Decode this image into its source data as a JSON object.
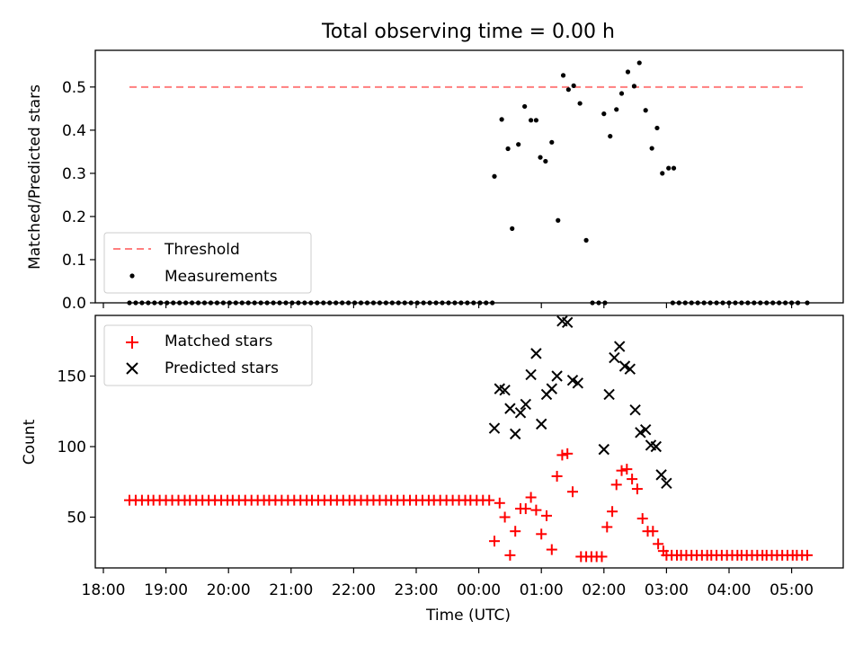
{
  "figure": {
    "title": "Total observing time = 0.00 h"
  },
  "chart_data": [
    {
      "type": "scatter",
      "panel": "top",
      "ylabel": "Matched/Predicted stars",
      "ylim": [
        0,
        0.585
      ],
      "yticks": [
        0.0,
        0.1,
        0.2,
        0.3,
        0.4,
        0.5
      ],
      "ytick_labels": [
        "0.0",
        "0.1",
        "0.2",
        "0.3",
        "0.4",
        "0.5"
      ],
      "grid": false,
      "legend_position": "lower-left",
      "threshold": {
        "name": "Threshold",
        "value": 0.5,
        "x_range": [
          "18:25",
          "05:15"
        ],
        "color": "#ff7f7f",
        "style": "dashed"
      },
      "series": [
        {
          "name": "Measurements",
          "color": "#000000",
          "marker": "dot",
          "points": [
            [
              "00:15",
              0.293
            ],
            [
              "00:22",
              0.425
            ],
            [
              "00:28",
              0.357
            ],
            [
              "00:32",
              0.172
            ],
            [
              "00:38",
              0.367
            ],
            [
              "00:44",
              0.455
            ],
            [
              "00:50",
              0.423
            ],
            [
              "00:55",
              0.423
            ],
            [
              "00:59",
              0.337
            ],
            [
              "01:04",
              0.328
            ],
            [
              "01:10",
              0.372
            ],
            [
              "01:16",
              0.191
            ],
            [
              "01:21",
              0.527
            ],
            [
              "01:26",
              0.494
            ],
            [
              "01:31",
              0.503
            ],
            [
              "01:37",
              0.462
            ],
            [
              "01:43",
              0.145
            ],
            [
              "02:00",
              0.438
            ],
            [
              "02:06",
              0.386
            ],
            [
              "02:12",
              0.448
            ],
            [
              "02:17",
              0.485
            ],
            [
              "02:23",
              0.535
            ],
            [
              "02:29",
              0.502
            ],
            [
              "02:34",
              0.556
            ],
            [
              "02:40",
              0.446
            ],
            [
              "02:46",
              0.358
            ],
            [
              "02:51",
              0.405
            ],
            [
              "02:56",
              0.3
            ],
            [
              "03:02",
              0.312
            ],
            [
              "03:07",
              0.312
            ]
          ],
          "zero_points": [
            "18:25",
            "18:31",
            "18:37",
            "18:43",
            "18:49",
            "18:55",
            "19:01",
            "19:07",
            "19:13",
            "19:19",
            "19:25",
            "19:31",
            "19:37",
            "19:43",
            "19:49",
            "19:55",
            "20:01",
            "20:07",
            "20:13",
            "20:19",
            "20:25",
            "20:31",
            "20:37",
            "20:43",
            "20:49",
            "20:55",
            "21:01",
            "21:07",
            "21:13",
            "21:19",
            "21:25",
            "21:31",
            "21:37",
            "21:43",
            "21:49",
            "21:55",
            "22:01",
            "22:07",
            "22:13",
            "22:19",
            "22:25",
            "22:31",
            "22:37",
            "22:43",
            "22:49",
            "22:55",
            "23:01",
            "23:07",
            "23:13",
            "23:19",
            "23:25",
            "23:31",
            "23:37",
            "23:43",
            "23:49",
            "23:55",
            "00:01",
            "00:07",
            "00:13",
            "01:49",
            "01:55",
            "02:01",
            "03:06",
            "03:12",
            "03:18",
            "03:24",
            "03:30",
            "03:36",
            "03:42",
            "03:48",
            "03:54",
            "04:00",
            "04:06",
            "04:12",
            "04:18",
            "04:24",
            "04:30",
            "04:36",
            "04:42",
            "04:48",
            "04:54",
            "05:00",
            "05:06",
            "05:15"
          ]
        }
      ]
    },
    {
      "type": "scatter",
      "panel": "bottom",
      "xlabel": "Time (UTC)",
      "ylabel": "Count",
      "ylim": [
        14,
        193
      ],
      "yticks": [
        50,
        100,
        150
      ],
      "ytick_labels": [
        "50",
        "100",
        "150"
      ],
      "xlim": [
        "18:00",
        "05:50"
      ],
      "xtick_labels": [
        "18:00",
        "19:00",
        "20:00",
        "21:00",
        "22:00",
        "23:00",
        "00:00",
        "01:00",
        "02:00",
        "03:00",
        "04:00",
        "05:00"
      ],
      "grid": false,
      "legend_position": "upper-left",
      "series": [
        {
          "name": "Matched stars",
          "color": "#ff0000",
          "marker": "plus",
          "points": [
            [
              "00:15",
              33
            ],
            [
              "00:20",
              60
            ],
            [
              "00:25",
              50
            ],
            [
              "00:30",
              23
            ],
            [
              "00:35",
              40
            ],
            [
              "00:40",
              56
            ],
            [
              "00:45",
              56
            ],
            [
              "00:50",
              64
            ],
            [
              "00:55",
              55
            ],
            [
              "01:00",
              38
            ],
            [
              "01:05",
              51
            ],
            [
              "01:10",
              27
            ],
            [
              "01:15",
              79
            ],
            [
              "01:20",
              94
            ],
            [
              "01:25",
              95
            ],
            [
              "01:30",
              68
            ],
            [
              "01:38",
              22
            ],
            [
              "01:43",
              22
            ],
            [
              "01:48",
              22
            ],
            [
              "01:53",
              22
            ],
            [
              "01:58",
              22
            ],
            [
              "02:03",
              43
            ],
            [
              "02:08",
              54
            ],
            [
              "02:12",
              73
            ],
            [
              "02:17",
              83
            ],
            [
              "02:22",
              84
            ],
            [
              "02:27",
              77
            ],
            [
              "02:32",
              70
            ],
            [
              "02:37",
              49
            ],
            [
              "02:42",
              40
            ],
            [
              "02:47",
              40
            ],
            [
              "02:52",
              31
            ],
            [
              "02:57",
              26
            ]
          ],
          "flat_segments": [
            {
              "from": "18:25",
              "to": "00:10",
              "value": 62,
              "count": 60
            },
            {
              "from": "03:00",
              "to": "05:15",
              "value": 23,
              "count": 29
            }
          ]
        },
        {
          "name": "Predicted stars",
          "color": "#000000",
          "marker": "x",
          "points": [
            [
              "00:15",
              113
            ],
            [
              "00:20",
              141
            ],
            [
              "00:25",
              140
            ],
            [
              "00:30",
              127
            ],
            [
              "00:35",
              109
            ],
            [
              "00:40",
              124
            ],
            [
              "00:45",
              130
            ],
            [
              "00:50",
              151
            ],
            [
              "00:55",
              166
            ],
            [
              "01:00",
              116
            ],
            [
              "01:05",
              137
            ],
            [
              "01:10",
              141
            ],
            [
              "01:15",
              150
            ],
            [
              "01:20",
              189
            ],
            [
              "01:25",
              188
            ],
            [
              "01:30",
              147
            ],
            [
              "01:35",
              145
            ],
            [
              "02:00",
              98
            ],
            [
              "02:05",
              137
            ],
            [
              "02:10",
              163
            ],
            [
              "02:15",
              171
            ],
            [
              "02:20",
              157
            ],
            [
              "02:25",
              155
            ],
            [
              "02:30",
              126
            ],
            [
              "02:35",
              110
            ],
            [
              "02:40",
              112
            ],
            [
              "02:45",
              101
            ],
            [
              "02:50",
              100
            ],
            [
              "02:55",
              80
            ],
            [
              "03:00",
              74
            ]
          ]
        }
      ]
    }
  ]
}
